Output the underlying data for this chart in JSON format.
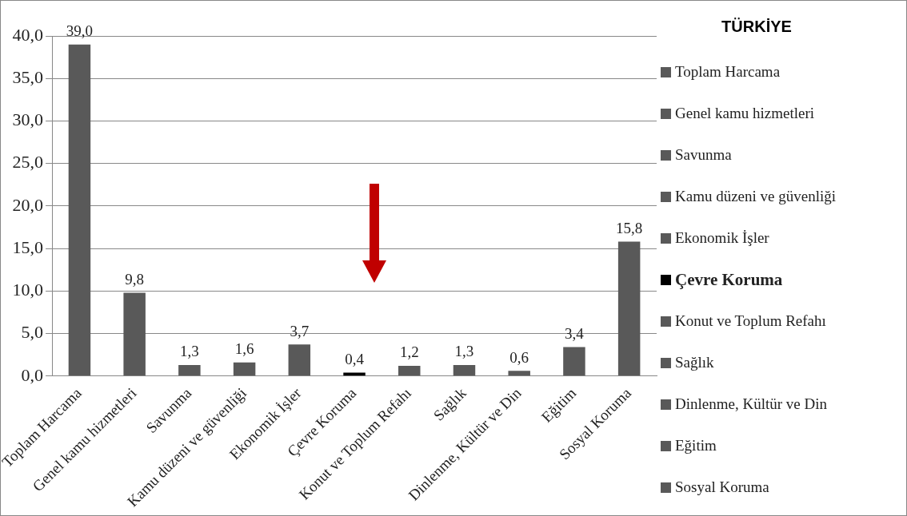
{
  "chart_data": {
    "type": "bar",
    "title": "TÜRKİYE",
    "categories": [
      "Toplam Harcama",
      "Genel kamu hizmetleri",
      "Savunma",
      "Kamu düzeni ve güvenliği",
      "Ekonomik İşler",
      "Çevre Koruma",
      "Konut ve Toplum Refahı",
      "Sağlık",
      "Dinlenme, Kültür ve Din",
      "Eğitim",
      "Sosyal Koruma"
    ],
    "values": [
      39.0,
      9.8,
      1.3,
      1.6,
      3.7,
      0.4,
      1.2,
      1.3,
      0.6,
      3.4,
      15.8
    ],
    "value_labels": [
      "39,0",
      "9,8",
      "1,3",
      "1,6",
      "3,7",
      "0,4",
      "1,2",
      "1,3",
      "0,6",
      "3,4",
      "15,8"
    ],
    "colors": [
      "#595959",
      "#595959",
      "#595959",
      "#595959",
      "#595959",
      "#000000",
      "#595959",
      "#595959",
      "#595959",
      "#595959",
      "#595959"
    ],
    "ylim": [
      0,
      40
    ],
    "yticks": [
      {
        "value": 0,
        "label": "0,0"
      },
      {
        "value": 5,
        "label": "5,0"
      },
      {
        "value": 10,
        "label": "10,0"
      },
      {
        "value": 15,
        "label": "15,0"
      },
      {
        "value": 20,
        "label": "20,0"
      },
      {
        "value": 25,
        "label": "25,0"
      },
      {
        "value": 30,
        "label": "30,0"
      },
      {
        "value": 35,
        "label": "35,0"
      },
      {
        "value": 40,
        "label": "40,0"
      }
    ],
    "grid": "y"
  }
}
